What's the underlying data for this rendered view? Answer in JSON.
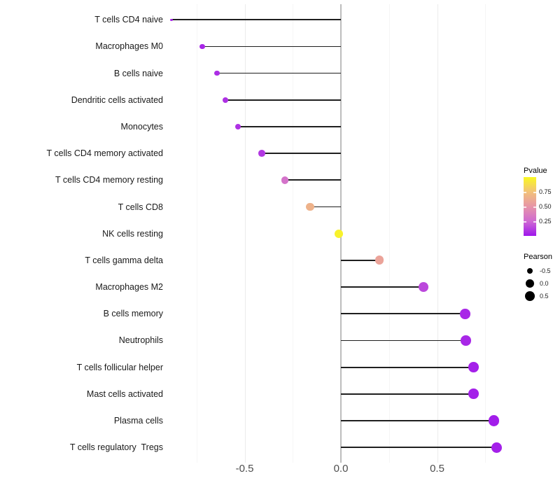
{
  "chart_data": {
    "type": "lollipop",
    "title": "",
    "xlabel": "",
    "ylabel": "",
    "x_ticks": [
      {
        "label": "-0.5",
        "value": -0.5
      },
      {
        "label": "0.0",
        "value": 0.0
      },
      {
        "label": "0.5",
        "value": 0.5
      }
    ],
    "xlim": [
      -0.9645,
      0.8945
    ],
    "grid_major": [
      -0.5,
      0.0,
      0.5
    ],
    "grid_minor": [
      -0.75,
      -0.25,
      0.25,
      0.75
    ],
    "rows": [
      {
        "label": "T cells CD4 naive",
        "pearson": -0.88,
        "pvalue": 0.05
      },
      {
        "label": "Macrophages M0",
        "pearson": -0.72,
        "pvalue": 0.05
      },
      {
        "label": "B cells naive",
        "pearson": -0.645,
        "pvalue": 0.07
      },
      {
        "label": "Dendritic cells activated",
        "pearson": -0.6,
        "pvalue": 0.08
      },
      {
        "label": "Monocytes",
        "pearson": -0.535,
        "pvalue": 0.08
      },
      {
        "label": "T cells CD4 memory activated",
        "pearson": -0.41,
        "pvalue": 0.1
      },
      {
        "label": "T cells CD4 memory resting",
        "pearson": -0.29,
        "pvalue": 0.3
      },
      {
        "label": "T cells CD8",
        "pearson": -0.16,
        "pvalue": 0.66
      },
      {
        "label": "NK cells resting",
        "pearson": -0.01,
        "pvalue": 0.97
      },
      {
        "label": "T cells gamma delta",
        "pearson": 0.2,
        "pvalue": 0.58
      },
      {
        "label": "Macrophages M2",
        "pearson": 0.43,
        "pvalue": 0.15
      },
      {
        "label": "B cells memory",
        "pearson": 0.645,
        "pvalue": 0.05
      },
      {
        "label": "Neutrophils",
        "pearson": 0.65,
        "pvalue": 0.05
      },
      {
        "label": "T cells follicular helper",
        "pearson": 0.69,
        "pvalue": 0.03
      },
      {
        "label": "Mast cells activated",
        "pearson": 0.69,
        "pvalue": 0.03
      },
      {
        "label": "Plasma cells",
        "pearson": 0.795,
        "pvalue": 0.02
      },
      {
        "label": "T cells regulatory  Tregs",
        "pearson": 0.81,
        "pvalue": 0.03
      }
    ],
    "legend_pvalue": {
      "title": "Pvalue",
      "limits": [
        0,
        1
      ],
      "ticks": [
        {
          "label": "0.75",
          "value": 0.75
        },
        {
          "label": "0.50",
          "value": 0.5
        },
        {
          "label": "0.25",
          "value": 0.25
        }
      ],
      "gradient_stops": [
        "#9E16EC",
        "#CF6AD2",
        "#E795A8",
        "#F2C279",
        "#F9F821"
      ]
    },
    "legend_pearson": {
      "title": "Pearson",
      "items": [
        {
          "label": "-0.5",
          "value": -0.5
        },
        {
          "label": "0.0",
          "value": 0.0
        },
        {
          "label": "0.5",
          "value": 0.5
        }
      ]
    },
    "colors": {
      "stem": "#1f1f1f",
      "zero_line": "#bdbdbd",
      "grid_major": "#ececec",
      "grid_minor": "#f5f5f5",
      "axis_tick_text": "#4d4d4d",
      "row_label_text": "#1a1a1a",
      "legend_dot": "#000000",
      "background": "#ffffff"
    }
  }
}
